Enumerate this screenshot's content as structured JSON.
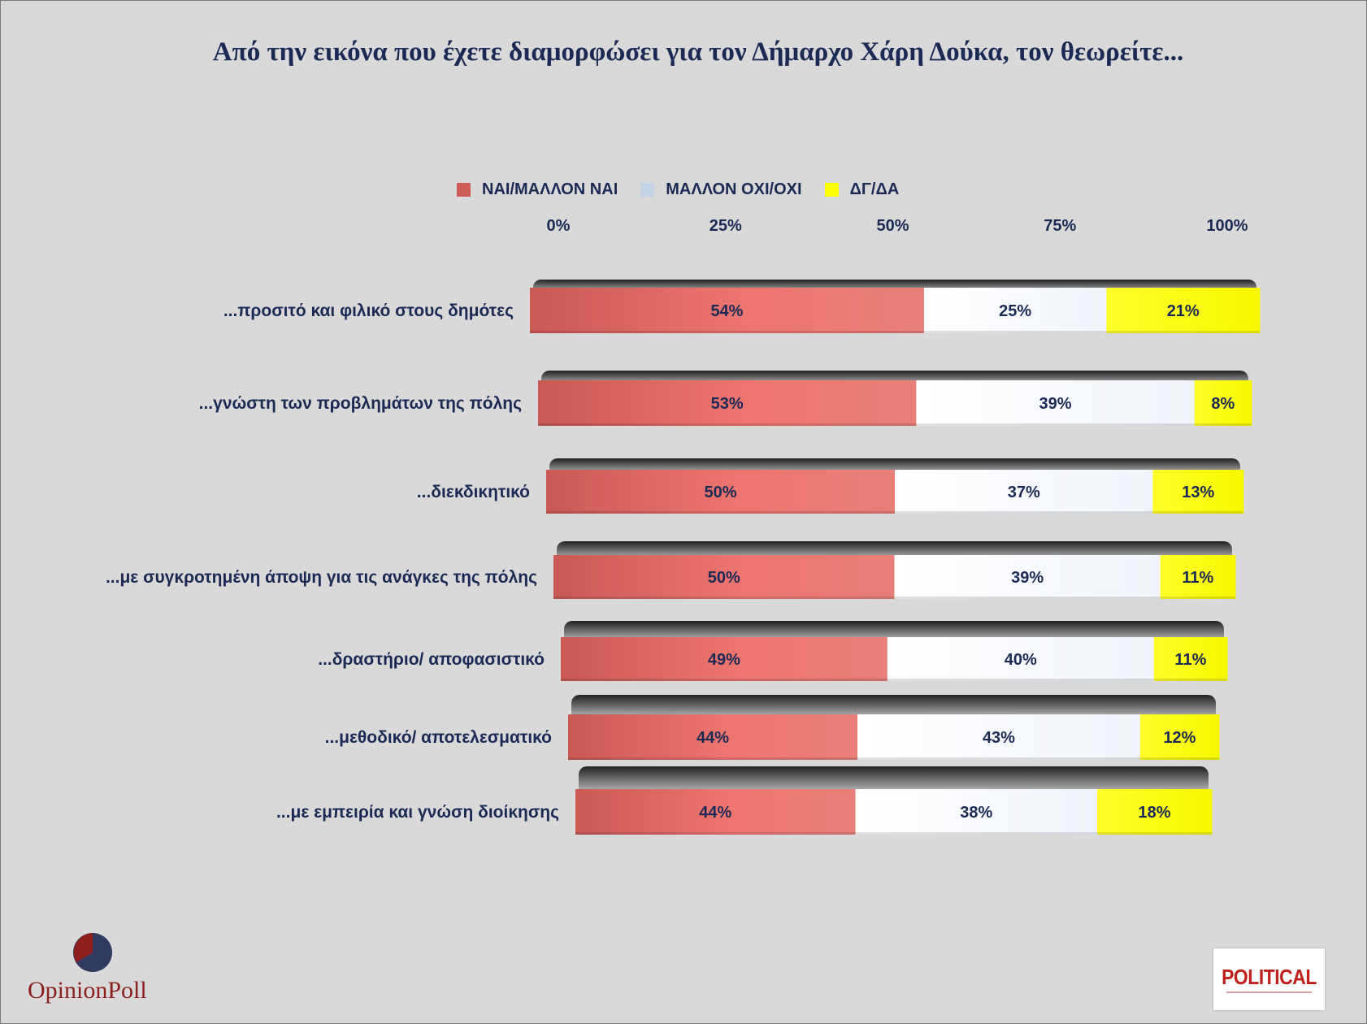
{
  "title": "Από την εικόνα που έχετε διαμορφώσει για τον Δήμαρχο Χάρη Δούκα, τον θεωρείτε...",
  "legend": {
    "yes": "ΝΑΙ/ΜΑΛΛΟΝ ΝΑΙ",
    "no": "ΜΑΛΛΟΝ ΟΧΙ/ΟΧΙ",
    "dk": "ΔΓ/ΔΑ"
  },
  "colors": {
    "yes": "#cd5c57",
    "no": "#c5d3e6",
    "dk": "#ffff00",
    "text": "#1b2a55",
    "background": "#d9d9d9"
  },
  "chart_data": {
    "type": "bar",
    "orientation": "horizontal",
    "stacked": true,
    "xlim": [
      0,
      100
    ],
    "x_ticks": [
      "0%",
      "25%",
      "50%",
      "75%",
      "100%"
    ],
    "legend_position": "top",
    "categories": [
      "...προσιτό και φιλικό στους δημότες",
      "...γνώστη των προβλημάτων της πόλης",
      "...διεκδικητικό",
      "...με συγκροτημένη άποψη για τις ανάγκες της πόλης",
      "...δραστήριο/ αποφασιστικό",
      "...μεθοδικό/ αποτελεσματικό",
      "...με εμπειρία και γνώση διοίκησης"
    ],
    "series": [
      {
        "name": "ΝΑΙ/ΜΑΛΛΟΝ ΝΑΙ",
        "values": [
          54,
          53,
          50,
          50,
          49,
          44,
          44
        ]
      },
      {
        "name": "ΜΑΛΛΟΝ ΟΧΙ/ΟΧΙ",
        "values": [
          25,
          39,
          37,
          39,
          40,
          43,
          38
        ]
      },
      {
        "name": "ΔΓ/ΔΑ",
        "values": [
          21,
          8,
          13,
          11,
          11,
          12,
          18
        ]
      }
    ]
  },
  "logos": {
    "left_text": "OpinionPoll",
    "right_text": "POLITICAL"
  }
}
